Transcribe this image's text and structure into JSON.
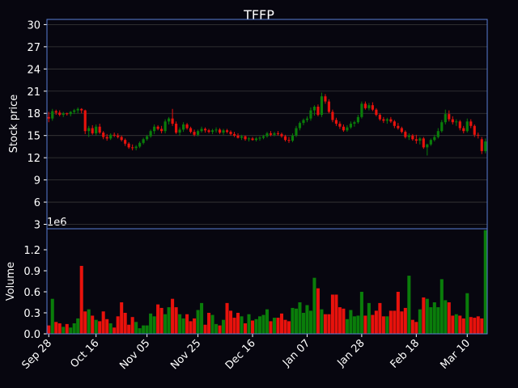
{
  "chart_data": {
    "type": "candlestick",
    "title": "TFFP",
    "price_panel": {
      "ylabel": "Stock price",
      "ylim": [
        2.4,
        30.7
      ],
      "yticks": [
        3,
        6,
        9,
        12,
        15,
        18,
        21,
        24,
        27,
        30
      ]
    },
    "volume_panel": {
      "ylabel": "Volume",
      "exponent_label": "1e6",
      "ylim": [
        0,
        1.5
      ],
      "yticks": [
        "0.0",
        "0.3",
        "0.6",
        "0.9",
        "1.2"
      ],
      "ytick_values": [
        0.0,
        0.3,
        0.6,
        0.9,
        1.2
      ]
    },
    "xtick_labels": [
      "Sep 28",
      "Oct 16",
      "Nov 05",
      "Nov 25",
      "Dec 16",
      "Jan 07",
      "Jan 28",
      "Feb 18",
      "Mar 10"
    ],
    "xtick_index": [
      0,
      13,
      27,
      41,
      56,
      71,
      86,
      101,
      115
    ],
    "grid": true,
    "colors": {
      "background": "#07060f",
      "up": "#0a7d0a",
      "down": "#e8120c",
      "frame": "#5a7fd6",
      "grid": "#3a3a3a",
      "text": "#ffffff"
    },
    "ohlcv": [
      [
        17.5,
        18.2,
        16.8,
        17.3,
        0.12
      ],
      [
        17.3,
        18.6,
        17.0,
        18.3,
        0.5
      ],
      [
        18.3,
        18.5,
        17.8,
        18.1,
        0.17
      ],
      [
        18.1,
        18.4,
        17.6,
        17.8,
        0.15
      ],
      [
        17.8,
        18.2,
        17.5,
        18.0,
        0.1
      ],
      [
        18.0,
        18.1,
        17.7,
        17.9,
        0.14
      ],
      [
        17.9,
        18.3,
        17.6,
        18.2,
        0.09
      ],
      [
        18.2,
        18.6,
        17.9,
        18.4,
        0.15
      ],
      [
        18.4,
        18.8,
        18.0,
        18.6,
        0.22
      ],
      [
        18.6,
        18.7,
        18.0,
        18.4,
        0.97
      ],
      [
        18.4,
        18.5,
        15.2,
        15.6,
        0.32
      ],
      [
        15.6,
        16.3,
        14.8,
        16.0,
        0.35
      ],
      [
        16.0,
        16.4,
        15.1,
        15.3,
        0.26
      ],
      [
        15.3,
        16.5,
        15.0,
        16.2,
        0.2
      ],
      [
        16.2,
        16.6,
        15.2,
        15.4,
        0.18
      ],
      [
        15.4,
        15.6,
        14.5,
        14.8,
        0.32
      ],
      [
        14.8,
        15.2,
        14.3,
        14.6,
        0.21
      ],
      [
        14.6,
        15.3,
        14.4,
        15.1,
        0.15
      ],
      [
        15.1,
        15.4,
        14.8,
        15.0,
        0.09
      ],
      [
        15.0,
        15.3,
        14.6,
        14.8,
        0.25
      ],
      [
        14.8,
        15.0,
        14.2,
        14.4,
        0.45
      ],
      [
        14.4,
        14.6,
        13.6,
        13.9,
        0.3
      ],
      [
        13.9,
        14.1,
        13.2,
        13.4,
        0.13
      ],
      [
        13.4,
        13.8,
        13.0,
        13.3,
        0.24
      ],
      [
        13.3,
        13.7,
        13.0,
        13.5,
        0.17
      ],
      [
        13.5,
        14.2,
        13.3,
        14.0,
        0.08
      ],
      [
        14.0,
        14.7,
        13.8,
        14.5,
        0.12
      ],
      [
        14.5,
        15.1,
        14.3,
        14.9,
        0.12
      ],
      [
        14.9,
        15.8,
        14.7,
        15.6,
        0.29
      ],
      [
        15.6,
        16.5,
        15.2,
        16.2,
        0.25
      ],
      [
        16.2,
        16.4,
        15.7,
        15.9,
        0.42
      ],
      [
        15.9,
        16.3,
        15.3,
        15.6,
        0.37
      ],
      [
        15.6,
        17.2,
        15.3,
        16.9,
        0.28
      ],
      [
        16.9,
        17.5,
        16.5,
        17.3,
        0.38
      ],
      [
        17.3,
        18.6,
        16.3,
        16.6,
        0.5
      ],
      [
        16.6,
        16.9,
        15.2,
        15.4,
        0.38
      ],
      [
        15.4,
        16.1,
        15.0,
        15.8,
        0.28
      ],
      [
        15.8,
        16.8,
        15.5,
        16.5,
        0.22
      ],
      [
        16.5,
        16.7,
        15.8,
        16.0,
        0.28
      ],
      [
        16.0,
        16.2,
        15.3,
        15.5,
        0.18
      ],
      [
        15.5,
        15.8,
        14.9,
        15.1,
        0.22
      ],
      [
        15.1,
        15.8,
        14.9,
        15.6,
        0.34
      ],
      [
        15.6,
        16.2,
        15.4,
        15.9,
        0.44
      ],
      [
        15.9,
        16.1,
        15.4,
        15.7,
        0.13
      ],
      [
        15.7,
        15.9,
        15.3,
        15.5,
        0.3
      ],
      [
        15.5,
        15.9,
        15.2,
        15.7,
        0.27
      ],
      [
        15.7,
        16.1,
        15.4,
        15.8,
        0.14
      ],
      [
        15.8,
        16.0,
        15.2,
        15.4,
        0.12
      ],
      [
        15.4,
        15.9,
        15.1,
        15.7,
        0.2
      ],
      [
        15.7,
        15.9,
        15.3,
        15.5,
        0.44
      ],
      [
        15.5,
        15.7,
        15.0,
        15.2,
        0.33
      ],
      [
        15.2,
        15.5,
        14.8,
        15.0,
        0.23
      ],
      [
        15.0,
        15.3,
        14.6,
        14.7,
        0.3
      ],
      [
        14.7,
        15.1,
        14.4,
        14.9,
        0.25
      ],
      [
        14.9,
        15.0,
        14.3,
        14.5,
        0.15
      ],
      [
        14.5,
        14.8,
        14.2,
        14.6,
        0.28
      ],
      [
        14.6,
        14.8,
        14.3,
        14.4,
        0.19
      ],
      [
        14.4,
        14.8,
        14.2,
        14.6,
        0.21
      ],
      [
        14.6,
        14.9,
        14.3,
        14.7,
        0.25
      ],
      [
        14.7,
        15.1,
        14.5,
        14.9,
        0.27
      ],
      [
        14.9,
        15.5,
        14.7,
        15.3,
        0.35
      ],
      [
        15.3,
        15.6,
        14.9,
        15.1,
        0.18
      ],
      [
        15.1,
        15.5,
        14.9,
        15.3,
        0.23
      ],
      [
        15.3,
        15.6,
        15.0,
        15.2,
        0.23
      ],
      [
        15.2,
        15.4,
        14.7,
        14.9,
        0.29
      ],
      [
        14.9,
        15.1,
        14.2,
        14.4,
        0.2
      ],
      [
        14.4,
        14.8,
        14.0,
        14.3,
        0.18
      ],
      [
        14.3,
        15.3,
        14.1,
        15.0,
        0.37
      ],
      [
        15.0,
        16.3,
        14.8,
        16.0,
        0.36
      ],
      [
        16.0,
        16.9,
        15.7,
        16.7,
        0.45
      ],
      [
        16.7,
        17.3,
        16.4,
        17.1,
        0.3
      ],
      [
        17.1,
        17.6,
        16.8,
        17.3,
        0.41
      ],
      [
        17.3,
        18.8,
        17.0,
        18.4,
        0.33
      ],
      [
        18.4,
        19.1,
        17.7,
        18.9,
        0.8
      ],
      [
        18.9,
        19.2,
        17.6,
        17.8,
        0.65
      ],
      [
        17.8,
        20.8,
        17.5,
        20.3,
        0.35
      ],
      [
        20.3,
        20.6,
        19.3,
        19.6,
        0.28
      ],
      [
        19.6,
        19.9,
        18.0,
        18.2,
        0.28
      ],
      [
        18.2,
        18.5,
        16.8,
        17.1,
        0.56
      ],
      [
        17.1,
        17.4,
        16.3,
        16.6,
        0.56
      ],
      [
        16.6,
        16.9,
        15.9,
        16.2,
        0.38
      ],
      [
        16.2,
        16.5,
        15.5,
        15.7,
        0.36
      ],
      [
        15.7,
        16.4,
        15.5,
        16.1,
        0.21
      ],
      [
        16.1,
        16.9,
        15.9,
        16.6,
        0.34
      ],
      [
        16.6,
        17.0,
        16.2,
        16.8,
        0.25
      ],
      [
        16.8,
        17.8,
        16.6,
        17.5,
        0.26
      ],
      [
        17.5,
        19.6,
        17.3,
        19.3,
        0.6
      ],
      [
        19.3,
        19.6,
        18.5,
        18.7,
        0.26
      ],
      [
        18.7,
        19.4,
        18.4,
        19.1,
        0.44
      ],
      [
        19.1,
        19.5,
        18.3,
        18.5,
        0.27
      ],
      [
        18.5,
        18.7,
        17.6,
        17.8,
        0.33
      ],
      [
        17.8,
        18.0,
        17.0,
        17.2,
        0.44
      ],
      [
        17.2,
        17.5,
        16.7,
        17.0,
        0.25
      ],
      [
        17.0,
        17.4,
        16.6,
        17.2,
        0.25
      ],
      [
        17.2,
        17.5,
        16.7,
        16.9,
        0.33
      ],
      [
        16.9,
        17.1,
        16.0,
        16.3,
        0.33
      ],
      [
        16.3,
        16.7,
        15.8,
        16.0,
        0.6
      ],
      [
        16.0,
        16.2,
        15.3,
        15.5,
        0.32
      ],
      [
        15.5,
        15.7,
        14.6,
        14.8,
        0.37
      ],
      [
        14.8,
        15.3,
        14.4,
        15.0,
        0.83
      ],
      [
        15.0,
        15.2,
        14.3,
        14.5,
        0.2
      ],
      [
        14.5,
        15.1,
        13.9,
        14.3,
        0.17
      ],
      [
        14.3,
        14.8,
        13.8,
        14.6,
        0.35
      ],
      [
        14.6,
        14.8,
        13.2,
        13.4,
        0.52
      ],
      [
        13.4,
        13.9,
        12.3,
        13.8,
        0.5
      ],
      [
        13.8,
        14.6,
        13.6,
        14.4,
        0.38
      ],
      [
        14.4,
        15.1,
        14.2,
        14.8,
        0.45
      ],
      [
        14.8,
        16.0,
        14.6,
        15.6,
        0.38
      ],
      [
        15.6,
        17.1,
        15.4,
        16.8,
        0.78
      ],
      [
        16.8,
        18.5,
        16.5,
        17.9,
        0.48
      ],
      [
        17.9,
        18.4,
        16.9,
        17.2,
        0.45
      ],
      [
        17.2,
        17.6,
        16.5,
        16.8,
        0.26
      ],
      [
        16.8,
        17.2,
        16.3,
        16.9,
        0.28
      ],
      [
        16.9,
        17.1,
        15.7,
        16.0,
        0.26
      ],
      [
        16.0,
        16.3,
        15.3,
        15.6,
        0.22
      ],
      [
        15.6,
        17.3,
        15.4,
        16.9,
        0.58
      ],
      [
        16.9,
        17.2,
        16.0,
        16.3,
        0.24
      ],
      [
        16.3,
        16.5,
        14.8,
        15.1,
        0.23
      ],
      [
        15.1,
        15.4,
        14.6,
        15.0,
        0.25
      ],
      [
        14.5,
        14.8,
        12.5,
        12.9,
        0.22
      ],
      [
        12.9,
        14.6,
        12.6,
        14.2,
        1.48
      ]
    ]
  }
}
